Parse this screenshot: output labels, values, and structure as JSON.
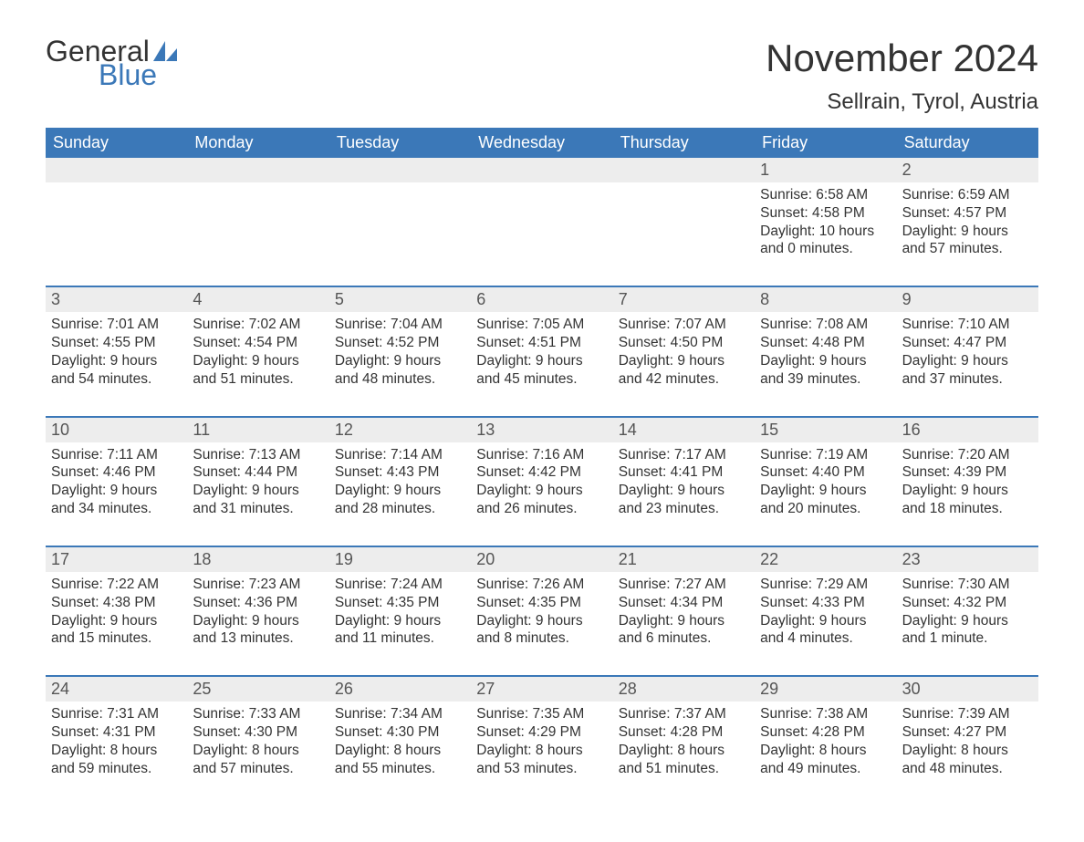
{
  "logo": {
    "text1": "General",
    "text2": "Blue",
    "sail_color": "#3b78b8"
  },
  "title": "November 2024",
  "location": "Sellrain, Tyrol, Austria",
  "colors": {
    "header_bg": "#3b78b8",
    "header_text": "#ffffff",
    "daynum_bg": "#ededed",
    "week_divider": "#3b78b8",
    "body_bg": "#ffffff",
    "text": "#333333"
  },
  "weekdays": [
    "Sunday",
    "Monday",
    "Tuesday",
    "Wednesday",
    "Thursday",
    "Friday",
    "Saturday"
  ],
  "weeks": [
    [
      null,
      null,
      null,
      null,
      null,
      {
        "n": "1",
        "sunrise": "Sunrise: 6:58 AM",
        "sunset": "Sunset: 4:58 PM",
        "day1": "Daylight: 10 hours",
        "day2": "and 0 minutes."
      },
      {
        "n": "2",
        "sunrise": "Sunrise: 6:59 AM",
        "sunset": "Sunset: 4:57 PM",
        "day1": "Daylight: 9 hours",
        "day2": "and 57 minutes."
      }
    ],
    [
      {
        "n": "3",
        "sunrise": "Sunrise: 7:01 AM",
        "sunset": "Sunset: 4:55 PM",
        "day1": "Daylight: 9 hours",
        "day2": "and 54 minutes."
      },
      {
        "n": "4",
        "sunrise": "Sunrise: 7:02 AM",
        "sunset": "Sunset: 4:54 PM",
        "day1": "Daylight: 9 hours",
        "day2": "and 51 minutes."
      },
      {
        "n": "5",
        "sunrise": "Sunrise: 7:04 AM",
        "sunset": "Sunset: 4:52 PM",
        "day1": "Daylight: 9 hours",
        "day2": "and 48 minutes."
      },
      {
        "n": "6",
        "sunrise": "Sunrise: 7:05 AM",
        "sunset": "Sunset: 4:51 PM",
        "day1": "Daylight: 9 hours",
        "day2": "and 45 minutes."
      },
      {
        "n": "7",
        "sunrise": "Sunrise: 7:07 AM",
        "sunset": "Sunset: 4:50 PM",
        "day1": "Daylight: 9 hours",
        "day2": "and 42 minutes."
      },
      {
        "n": "8",
        "sunrise": "Sunrise: 7:08 AM",
        "sunset": "Sunset: 4:48 PM",
        "day1": "Daylight: 9 hours",
        "day2": "and 39 minutes."
      },
      {
        "n": "9",
        "sunrise": "Sunrise: 7:10 AM",
        "sunset": "Sunset: 4:47 PM",
        "day1": "Daylight: 9 hours",
        "day2": "and 37 minutes."
      }
    ],
    [
      {
        "n": "10",
        "sunrise": "Sunrise: 7:11 AM",
        "sunset": "Sunset: 4:46 PM",
        "day1": "Daylight: 9 hours",
        "day2": "and 34 minutes."
      },
      {
        "n": "11",
        "sunrise": "Sunrise: 7:13 AM",
        "sunset": "Sunset: 4:44 PM",
        "day1": "Daylight: 9 hours",
        "day2": "and 31 minutes."
      },
      {
        "n": "12",
        "sunrise": "Sunrise: 7:14 AM",
        "sunset": "Sunset: 4:43 PM",
        "day1": "Daylight: 9 hours",
        "day2": "and 28 minutes."
      },
      {
        "n": "13",
        "sunrise": "Sunrise: 7:16 AM",
        "sunset": "Sunset: 4:42 PM",
        "day1": "Daylight: 9 hours",
        "day2": "and 26 minutes."
      },
      {
        "n": "14",
        "sunrise": "Sunrise: 7:17 AM",
        "sunset": "Sunset: 4:41 PM",
        "day1": "Daylight: 9 hours",
        "day2": "and 23 minutes."
      },
      {
        "n": "15",
        "sunrise": "Sunrise: 7:19 AM",
        "sunset": "Sunset: 4:40 PM",
        "day1": "Daylight: 9 hours",
        "day2": "and 20 minutes."
      },
      {
        "n": "16",
        "sunrise": "Sunrise: 7:20 AM",
        "sunset": "Sunset: 4:39 PM",
        "day1": "Daylight: 9 hours",
        "day2": "and 18 minutes."
      }
    ],
    [
      {
        "n": "17",
        "sunrise": "Sunrise: 7:22 AM",
        "sunset": "Sunset: 4:38 PM",
        "day1": "Daylight: 9 hours",
        "day2": "and 15 minutes."
      },
      {
        "n": "18",
        "sunrise": "Sunrise: 7:23 AM",
        "sunset": "Sunset: 4:36 PM",
        "day1": "Daylight: 9 hours",
        "day2": "and 13 minutes."
      },
      {
        "n": "19",
        "sunrise": "Sunrise: 7:24 AM",
        "sunset": "Sunset: 4:35 PM",
        "day1": "Daylight: 9 hours",
        "day2": "and 11 minutes."
      },
      {
        "n": "20",
        "sunrise": "Sunrise: 7:26 AM",
        "sunset": "Sunset: 4:35 PM",
        "day1": "Daylight: 9 hours",
        "day2": "and 8 minutes."
      },
      {
        "n": "21",
        "sunrise": "Sunrise: 7:27 AM",
        "sunset": "Sunset: 4:34 PM",
        "day1": "Daylight: 9 hours",
        "day2": "and 6 minutes."
      },
      {
        "n": "22",
        "sunrise": "Sunrise: 7:29 AM",
        "sunset": "Sunset: 4:33 PM",
        "day1": "Daylight: 9 hours",
        "day2": "and 4 minutes."
      },
      {
        "n": "23",
        "sunrise": "Sunrise: 7:30 AM",
        "sunset": "Sunset: 4:32 PM",
        "day1": "Daylight: 9 hours",
        "day2": "and 1 minute."
      }
    ],
    [
      {
        "n": "24",
        "sunrise": "Sunrise: 7:31 AM",
        "sunset": "Sunset: 4:31 PM",
        "day1": "Daylight: 8 hours",
        "day2": "and 59 minutes."
      },
      {
        "n": "25",
        "sunrise": "Sunrise: 7:33 AM",
        "sunset": "Sunset: 4:30 PM",
        "day1": "Daylight: 8 hours",
        "day2": "and 57 minutes."
      },
      {
        "n": "26",
        "sunrise": "Sunrise: 7:34 AM",
        "sunset": "Sunset: 4:30 PM",
        "day1": "Daylight: 8 hours",
        "day2": "and 55 minutes."
      },
      {
        "n": "27",
        "sunrise": "Sunrise: 7:35 AM",
        "sunset": "Sunset: 4:29 PM",
        "day1": "Daylight: 8 hours",
        "day2": "and 53 minutes."
      },
      {
        "n": "28",
        "sunrise": "Sunrise: 7:37 AM",
        "sunset": "Sunset: 4:28 PM",
        "day1": "Daylight: 8 hours",
        "day2": "and 51 minutes."
      },
      {
        "n": "29",
        "sunrise": "Sunrise: 7:38 AM",
        "sunset": "Sunset: 4:28 PM",
        "day1": "Daylight: 8 hours",
        "day2": "and 49 minutes."
      },
      {
        "n": "30",
        "sunrise": "Sunrise: 7:39 AM",
        "sunset": "Sunset: 4:27 PM",
        "day1": "Daylight: 8 hours",
        "day2": "and 48 minutes."
      }
    ]
  ]
}
